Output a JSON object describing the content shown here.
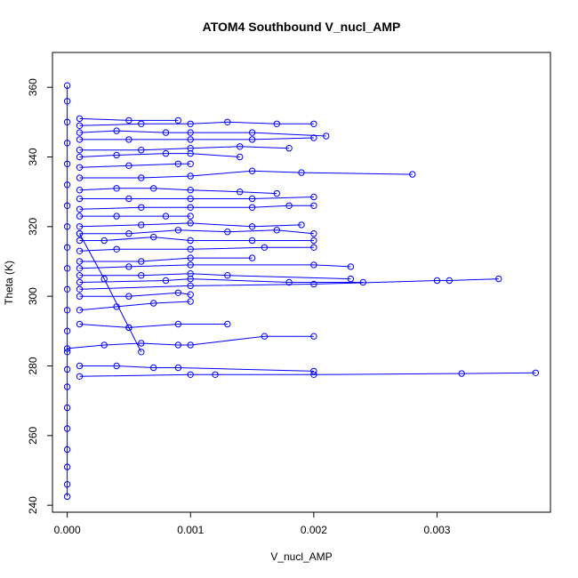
{
  "chart_data": {
    "type": "scatter",
    "title": "ATOM4 Southbound V_nucl_AMP",
    "xlabel": "V_nucl_AMP",
    "ylabel": "Theta (K)",
    "xlim": [
      -0.00012,
      0.00392
    ],
    "ylim": [
      238,
      370
    ],
    "x_ticks": [
      0,
      0.001,
      0.002,
      0.003
    ],
    "x_tick_labels": [
      "0.000",
      "0.001",
      "0.002",
      "0.003"
    ],
    "y_ticks": [
      240,
      260,
      280,
      300,
      320,
      340,
      360
    ],
    "y_tick_labels": [
      "240",
      "260",
      "280",
      "300",
      "320",
      "340",
      "360"
    ],
    "grid": false,
    "series_color": "#0000ff",
    "style": "points connected by lines (open circles)",
    "series": [
      {
        "profile": [
          {
            "x": 0.0,
            "y": 242.5
          },
          {
            "x": 0.0,
            "y": 246
          },
          {
            "x": 0.0,
            "y": 251
          },
          {
            "x": 0.0,
            "y": 256
          },
          {
            "x": 0.0,
            "y": 262
          },
          {
            "x": 0.0,
            "y": 268
          },
          {
            "x": 0.0,
            "y": 274
          },
          {
            "x": 0.0,
            "y": 279
          },
          {
            "x": 0.0,
            "y": 284
          },
          {
            "x": 0.0,
            "y": 290
          },
          {
            "x": 0.0,
            "y": 296
          },
          {
            "x": 0.0,
            "y": 302
          },
          {
            "x": 0.0,
            "y": 308
          },
          {
            "x": 0.0,
            "y": 314
          },
          {
            "x": 0.0,
            "y": 320
          },
          {
            "x": 0.0,
            "y": 326
          },
          {
            "x": 0.0,
            "y": 332
          },
          {
            "x": 0.0,
            "y": 338
          },
          {
            "x": 0.0,
            "y": 344
          },
          {
            "x": 0.0,
            "y": 350
          },
          {
            "x": 0.0,
            "y": 356
          },
          {
            "x": 0.0,
            "y": 360.5
          }
        ]
      },
      {
        "profile": [
          {
            "x": 0.0001,
            "y": 277
          },
          {
            "x": 0.001,
            "y": 277.5
          },
          {
            "x": 0.0012,
            "y": 277.5
          },
          {
            "x": 0.002,
            "y": 277.5
          },
          {
            "x": 0.0032,
            "y": 277.8
          },
          {
            "x": 0.0038,
            "y": 278
          }
        ]
      },
      {
        "profile": [
          {
            "x": 0.0001,
            "y": 280
          },
          {
            "x": 0.0004,
            "y": 280
          },
          {
            "x": 0.0007,
            "y": 279.5
          },
          {
            "x": 0.0009,
            "y": 279.5
          },
          {
            "x": 0.002,
            "y": 278.5
          }
        ]
      },
      {
        "profile": [
          {
            "x": 0.0,
            "y": 285
          },
          {
            "x": 0.0003,
            "y": 286
          },
          {
            "x": 0.0006,
            "y": 286.5
          },
          {
            "x": 0.0009,
            "y": 286
          },
          {
            "x": 0.001,
            "y": 286
          },
          {
            "x": 0.0016,
            "y": 288.5
          },
          {
            "x": 0.002,
            "y": 288.5
          }
        ]
      },
      {
        "profile": [
          {
            "x": 0.0001,
            "y": 292
          },
          {
            "x": 0.0005,
            "y": 291
          },
          {
            "x": 0.0009,
            "y": 292
          },
          {
            "x": 0.0013,
            "y": 292
          }
        ]
      },
      {
        "profile": [
          {
            "x": 0.0001,
            "y": 296
          },
          {
            "x": 0.0004,
            "y": 297
          },
          {
            "x": 0.0007,
            "y": 298
          },
          {
            "x": 0.001,
            "y": 298.5
          }
        ]
      },
      {
        "profile": [
          {
            "x": 0.0001,
            "y": 300
          },
          {
            "x": 0.0005,
            "y": 300
          },
          {
            "x": 0.0009,
            "y": 301
          },
          {
            "x": 0.001,
            "y": 300.5
          }
        ]
      },
      {
        "profile": [
          {
            "x": 0.0001,
            "y": 302
          },
          {
            "x": 0.001,
            "y": 303
          },
          {
            "x": 0.002,
            "y": 303.5
          },
          {
            "x": 0.003,
            "y": 304.5
          },
          {
            "x": 0.0031,
            "y": 304.5
          },
          {
            "x": 0.0035,
            "y": 305
          }
        ]
      },
      {
        "profile": [
          {
            "x": 0.0001,
            "y": 304
          },
          {
            "x": 0.0008,
            "y": 304.5
          },
          {
            "x": 0.001,
            "y": 305
          },
          {
            "x": 0.0018,
            "y": 304
          },
          {
            "x": 0.0024,
            "y": 304
          }
        ]
      },
      {
        "profile": [
          {
            "x": 0.0001,
            "y": 306
          },
          {
            "x": 0.0006,
            "y": 306
          },
          {
            "x": 0.001,
            "y": 306.5
          },
          {
            "x": 0.0013,
            "y": 306
          },
          {
            "x": 0.0023,
            "y": 305
          }
        ]
      },
      {
        "profile": [
          {
            "x": 0.0001,
            "y": 308
          },
          {
            "x": 0.0005,
            "y": 308.5
          },
          {
            "x": 0.001,
            "y": 309
          },
          {
            "x": 0.002,
            "y": 309
          },
          {
            "x": 0.0023,
            "y": 308.5
          }
        ]
      },
      {
        "profile": [
          {
            "x": 0.0001,
            "y": 310
          },
          {
            "x": 0.0006,
            "y": 310
          },
          {
            "x": 0.001,
            "y": 311
          },
          {
            "x": 0.0015,
            "y": 311
          }
        ]
      },
      {
        "profile": [
          {
            "x": 0.0001,
            "y": 313
          },
          {
            "x": 0.0004,
            "y": 313.5
          },
          {
            "x": 0.001,
            "y": 313.5
          },
          {
            "x": 0.0016,
            "y": 314
          },
          {
            "x": 0.002,
            "y": 314
          }
        ]
      },
      {
        "profile": [
          {
            "x": 0.0001,
            "y": 316
          },
          {
            "x": 0.0003,
            "y": 316
          },
          {
            "x": 0.0007,
            "y": 317
          },
          {
            "x": 0.001,
            "y": 316
          },
          {
            "x": 0.0015,
            "y": 316
          },
          {
            "x": 0.002,
            "y": 316
          }
        ]
      },
      {
        "profile": [
          {
            "x": 0.0001,
            "y": 318
          },
          {
            "x": 0.0005,
            "y": 318
          },
          {
            "x": 0.0009,
            "y": 319
          },
          {
            "x": 0.0013,
            "y": 318.5
          },
          {
            "x": 0.0017,
            "y": 319
          },
          {
            "x": 0.002,
            "y": 318
          }
        ]
      },
      {
        "profile": [
          {
            "x": 0.0001,
            "y": 320
          },
          {
            "x": 0.0006,
            "y": 320.5
          },
          {
            "x": 0.001,
            "y": 321
          },
          {
            "x": 0.0015,
            "y": 320
          },
          {
            "x": 0.0019,
            "y": 320.5
          }
        ]
      },
      {
        "profile": [
          {
            "x": 0.0001,
            "y": 323
          },
          {
            "x": 0.0004,
            "y": 323
          },
          {
            "x": 0.0008,
            "y": 323
          },
          {
            "x": 0.001,
            "y": 323
          }
        ]
      },
      {
        "profile": [
          {
            "x": 0.0001,
            "y": 325
          },
          {
            "x": 0.0006,
            "y": 325.5
          },
          {
            "x": 0.001,
            "y": 325.5
          },
          {
            "x": 0.0015,
            "y": 325.5
          },
          {
            "x": 0.0018,
            "y": 326
          },
          {
            "x": 0.002,
            "y": 326
          }
        ]
      },
      {
        "profile": [
          {
            "x": 0.0001,
            "y": 328
          },
          {
            "x": 0.0005,
            "y": 328
          },
          {
            "x": 0.001,
            "y": 328
          },
          {
            "x": 0.0015,
            "y": 328
          },
          {
            "x": 0.002,
            "y": 328.5
          }
        ]
      },
      {
        "profile": [
          {
            "x": 0.0001,
            "y": 330.5
          },
          {
            "x": 0.0004,
            "y": 331
          },
          {
            "x": 0.0007,
            "y": 331
          },
          {
            "x": 0.001,
            "y": 330.5
          },
          {
            "x": 0.0014,
            "y": 330
          },
          {
            "x": 0.0017,
            "y": 329.5
          }
        ]
      },
      {
        "profile": [
          {
            "x": 0.0001,
            "y": 334
          },
          {
            "x": 0.0006,
            "y": 334
          },
          {
            "x": 0.001,
            "y": 334.5
          },
          {
            "x": 0.0015,
            "y": 336
          },
          {
            "x": 0.0019,
            "y": 335.5
          },
          {
            "x": 0.0028,
            "y": 335
          }
        ]
      },
      {
        "profile": [
          {
            "x": 0.0001,
            "y": 337
          },
          {
            "x": 0.0005,
            "y": 337.5
          },
          {
            "x": 0.0009,
            "y": 338
          },
          {
            "x": 0.001,
            "y": 338
          }
        ]
      },
      {
        "profile": [
          {
            "x": 0.0001,
            "y": 340
          },
          {
            "x": 0.0004,
            "y": 340.5
          },
          {
            "x": 0.0008,
            "y": 341
          },
          {
            "x": 0.001,
            "y": 341
          },
          {
            "x": 0.0014,
            "y": 340
          }
        ]
      },
      {
        "profile": [
          {
            "x": 0.0001,
            "y": 342
          },
          {
            "x": 0.0006,
            "y": 342
          },
          {
            "x": 0.001,
            "y": 342.5
          },
          {
            "x": 0.0014,
            "y": 343
          },
          {
            "x": 0.0018,
            "y": 342.5
          }
        ]
      },
      {
        "profile": [
          {
            "x": 0.0001,
            "y": 345
          },
          {
            "x": 0.0005,
            "y": 345
          },
          {
            "x": 0.001,
            "y": 345
          },
          {
            "x": 0.0015,
            "y": 345
          },
          {
            "x": 0.002,
            "y": 345.5
          }
        ]
      },
      {
        "profile": [
          {
            "x": 0.0001,
            "y": 347
          },
          {
            "x": 0.0004,
            "y": 347.5
          },
          {
            "x": 0.0008,
            "y": 347
          },
          {
            "x": 0.001,
            "y": 347
          },
          {
            "x": 0.0015,
            "y": 347
          },
          {
            "x": 0.0021,
            "y": 346
          }
        ]
      },
      {
        "profile": [
          {
            "x": 0.0001,
            "y": 349
          },
          {
            "x": 0.0006,
            "y": 349.5
          },
          {
            "x": 0.001,
            "y": 349.5
          },
          {
            "x": 0.0013,
            "y": 350
          },
          {
            "x": 0.0017,
            "y": 349.5
          },
          {
            "x": 0.002,
            "y": 349.5
          }
        ]
      },
      {
        "profile": [
          {
            "x": 0.0001,
            "y": 351
          },
          {
            "x": 0.0005,
            "y": 350.5
          },
          {
            "x": 0.0009,
            "y": 350.5
          }
        ]
      },
      {
        "profile": [
          {
            "x": 0.0001,
            "y": 318
          },
          {
            "x": 0.0003,
            "y": 305
          },
          {
            "x": 0.0005,
            "y": 291
          },
          {
            "x": 0.0006,
            "y": 284
          }
        ]
      }
    ]
  }
}
